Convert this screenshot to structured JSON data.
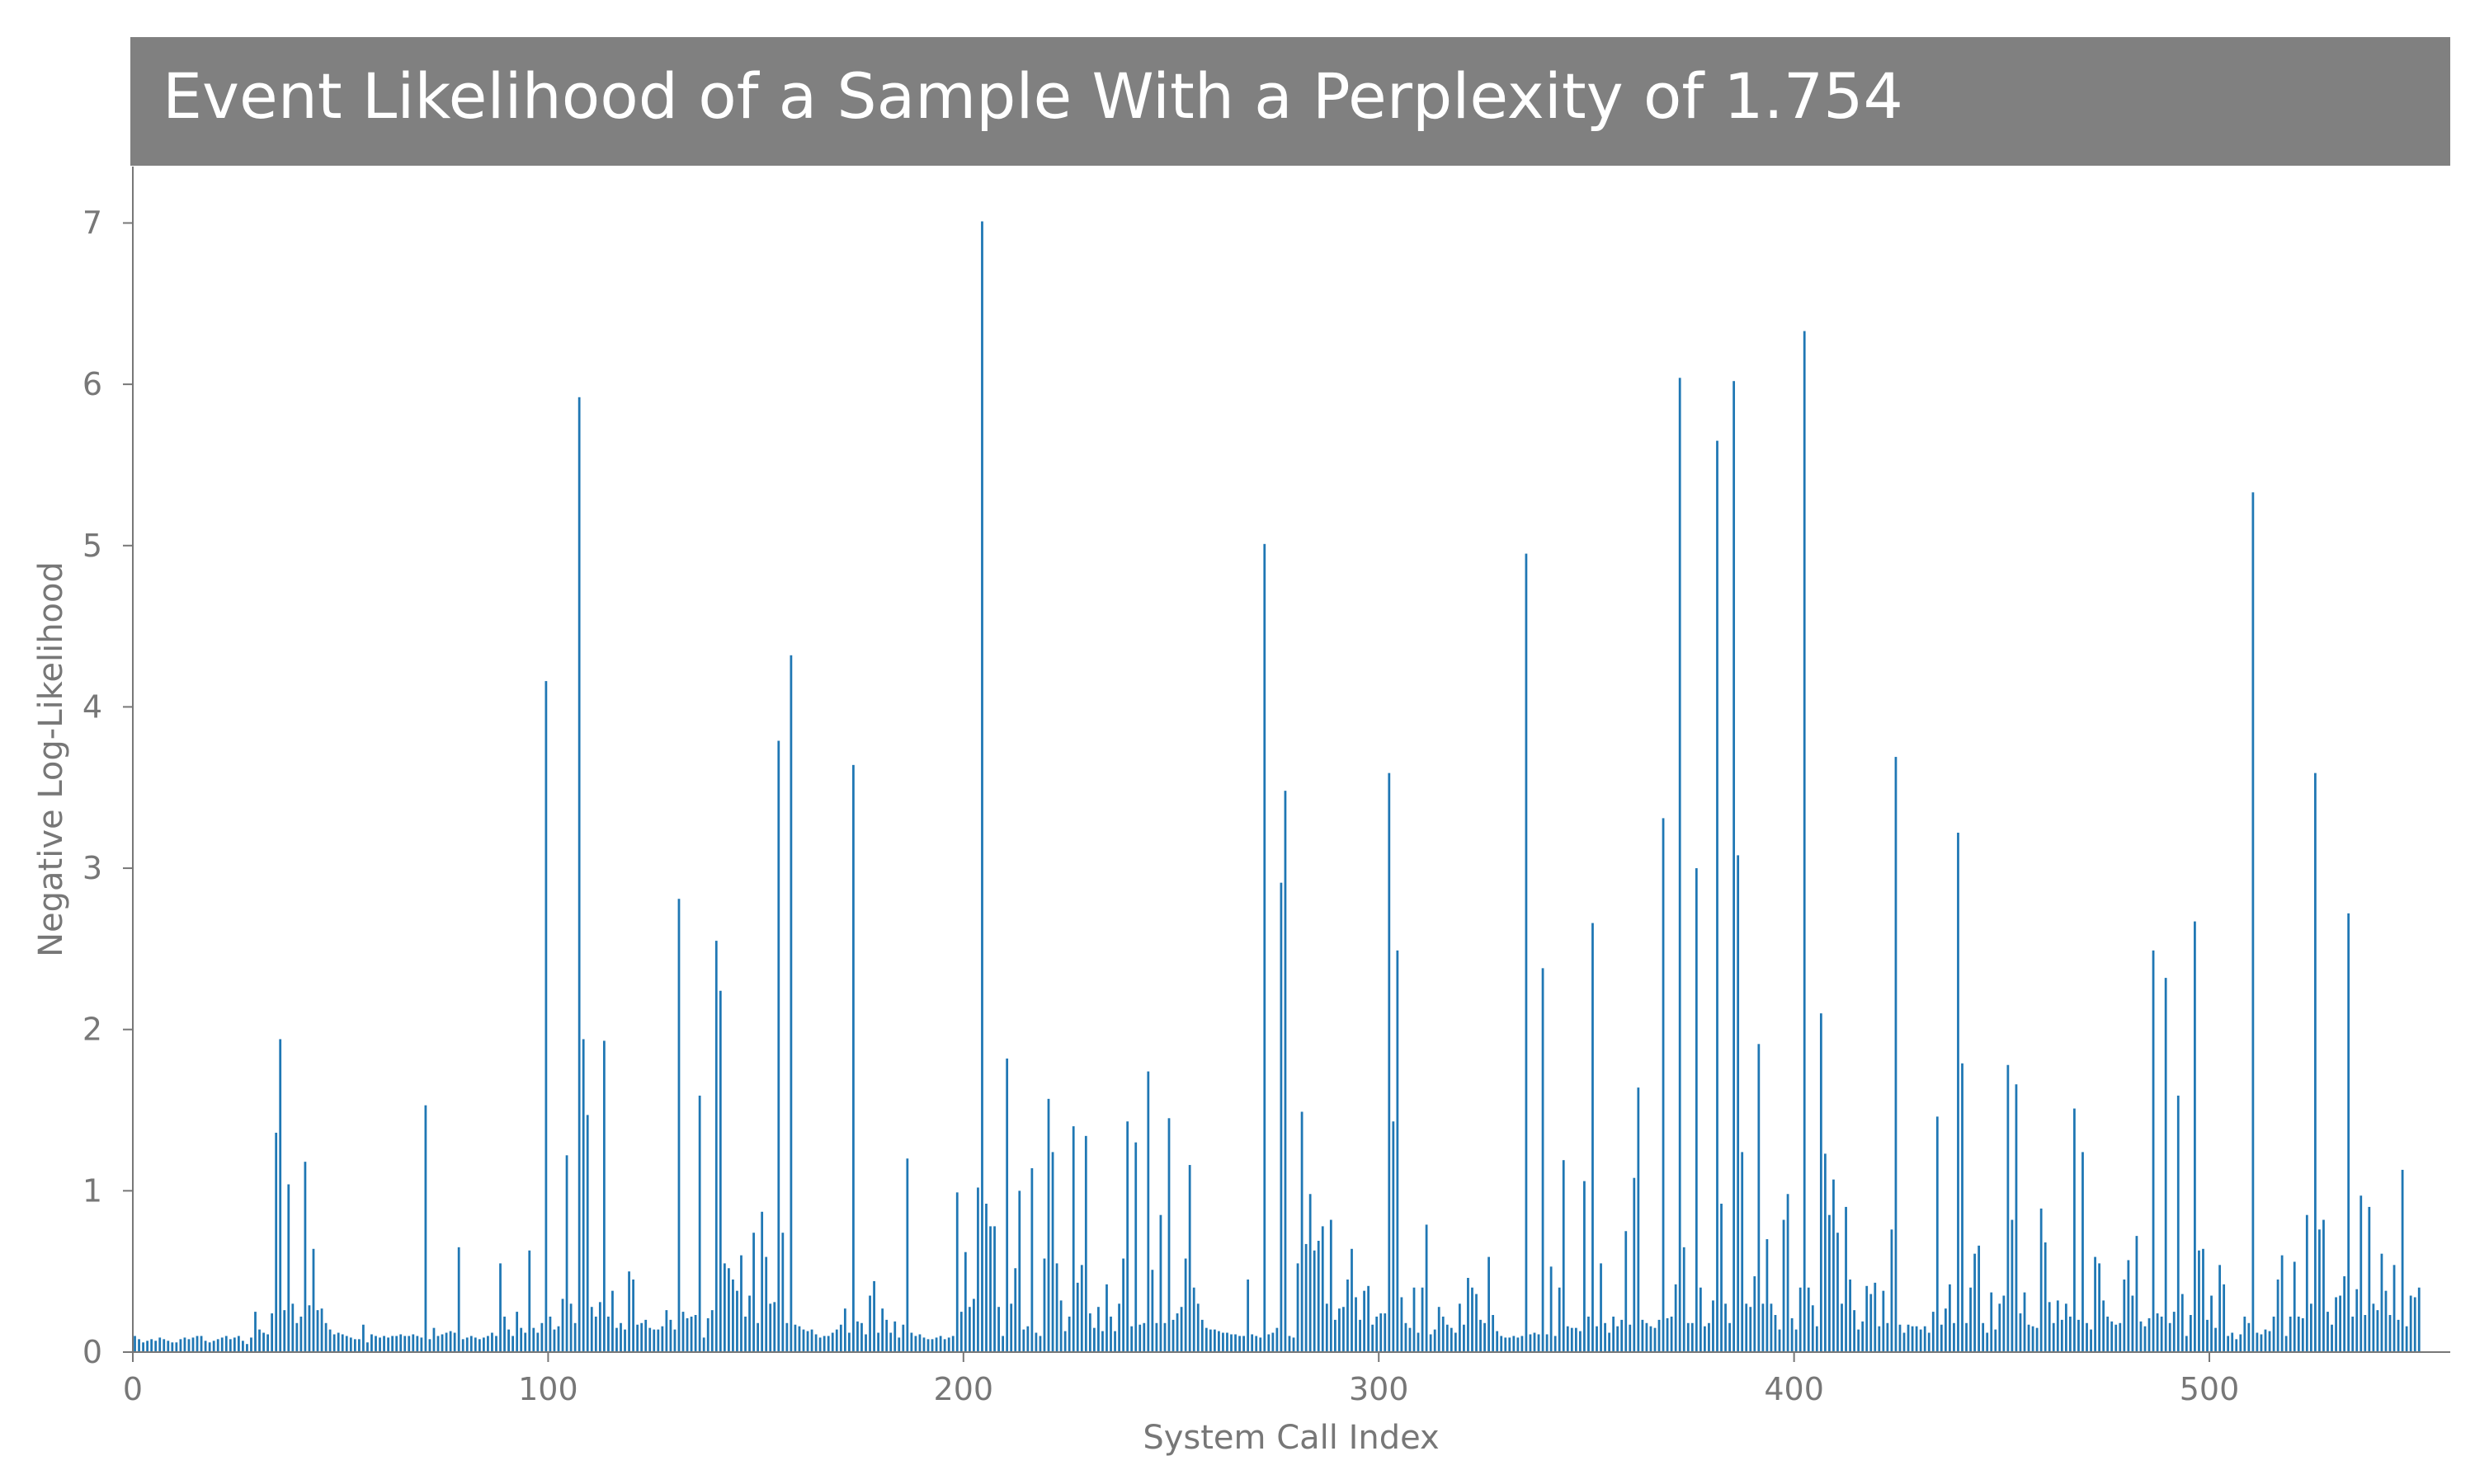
{
  "chart_data": {
    "type": "bar",
    "title": "Event Likelihood of a Sample With a Perplexity of 1.754",
    "xlabel": "System Call Index",
    "ylabel": "Negative Log-Likelihood",
    "xlim": [
      0,
      558
    ],
    "ylim": [
      0,
      7.35
    ],
    "xticks": [
      0,
      100,
      200,
      300,
      400,
      500
    ],
    "yticks": [
      0,
      1,
      2,
      3,
      4,
      5,
      6,
      7
    ],
    "grid": false,
    "legend": "none",
    "colors": {
      "bar": "#1f77b4",
      "title_bg": "#808080",
      "axis": "#777777"
    },
    "values": [
      0.1,
      0.08,
      0.06,
      0.07,
      0.08,
      0.07,
      0.09,
      0.08,
      0.07,
      0.06,
      0.06,
      0.08,
      0.09,
      0.08,
      0.09,
      0.1,
      0.1,
      0.07,
      0.06,
      0.07,
      0.08,
      0.09,
      0.1,
      0.08,
      0.09,
      0.1,
      0.07,
      0.05,
      0.09,
      0.25,
      0.14,
      0.12,
      0.11,
      0.24,
      1.36,
      1.94,
      0.26,
      1.04,
      0.3,
      0.18,
      0.22,
      1.18,
      0.29,
      0.64,
      0.26,
      0.27,
      0.18,
      0.14,
      0.11,
      0.12,
      0.11,
      0.1,
      0.09,
      0.08,
      0.08,
      0.17,
      0.06,
      0.11,
      0.1,
      0.09,
      0.1,
      0.09,
      0.1,
      0.1,
      0.11,
      0.1,
      0.1,
      0.11,
      0.1,
      0.09,
      1.53,
      0.08,
      0.15,
      0.1,
      0.11,
      0.12,
      0.13,
      0.12,
      0.65,
      0.08,
      0.09,
      0.1,
      0.09,
      0.08,
      0.09,
      0.1,
      0.12,
      0.1,
      0.55,
      0.22,
      0.14,
      0.1,
      0.25,
      0.15,
      0.12,
      0.63,
      0.15,
      0.12,
      0.18,
      4.16,
      0.22,
      0.14,
      0.16,
      0.33,
      1.22,
      0.3,
      0.18,
      5.92,
      1.94,
      1.47,
      0.28,
      0.22,
      0.31,
      1.93,
      0.22,
      0.38,
      0.15,
      0.18,
      0.14,
      0.5,
      0.45,
      0.17,
      0.18,
      0.2,
      0.15,
      0.14,
      0.14,
      0.16,
      0.26,
      0.2,
      0.14,
      2.81,
      0.25,
      0.21,
      0.22,
      0.23,
      1.59,
      0.09,
      0.21,
      0.26,
      2.55,
      2.24,
      0.55,
      0.52,
      0.45,
      0.38,
      0.6,
      0.22,
      0.35,
      0.74,
      0.18,
      0.87,
      0.59,
      0.3,
      0.31,
      3.79,
      0.74,
      0.18,
      4.32,
      0.17,
      0.16,
      0.14,
      0.13,
      0.14,
      0.11,
      0.09,
      0.1,
      0.1,
      0.12,
      0.14,
      0.17,
      0.27,
      0.12,
      3.64,
      0.19,
      0.18,
      0.11,
      0.35,
      0.44,
      0.12,
      0.27,
      0.2,
      0.12,
      0.19,
      0.09,
      0.17,
      1.2,
      0.12,
      0.1,
      0.11,
      0.09,
      0.08,
      0.08,
      0.09,
      0.1,
      0.08,
      0.09,
      0.1,
      0.99,
      0.25,
      0.62,
      0.28,
      0.33,
      1.02,
      7.01,
      0.92,
      0.78,
      0.78,
      0.28,
      0.1,
      1.82,
      0.3,
      0.52,
      1.0,
      0.14,
      0.16,
      1.14,
      0.12,
      0.1,
      0.58,
      1.57,
      1.24,
      0.55,
      0.32,
      0.13,
      0.22,
      1.4,
      0.43,
      0.54,
      1.34,
      0.24,
      0.15,
      0.28,
      0.13,
      0.42,
      0.22,
      0.13,
      0.3,
      0.58,
      1.43,
      0.16,
      1.3,
      0.17,
      0.18,
      1.74,
      0.51,
      0.18,
      0.85,
      0.18,
      1.45,
      0.2,
      0.24,
      0.28,
      0.58,
      1.16,
      0.4,
      0.3,
      0.2,
      0.15,
      0.14,
      0.14,
      0.13,
      0.12,
      0.12,
      0.11,
      0.11,
      0.1,
      0.1,
      0.45,
      0.11,
      0.1,
      0.09,
      5.01,
      0.11,
      0.12,
      0.15,
      2.91,
      3.48,
      0.1,
      0.09,
      0.55,
      1.49,
      0.67,
      0.98,
      0.63,
      0.69,
      0.78,
      0.3,
      0.82,
      0.2,
      0.27,
      0.28,
      0.45,
      0.64,
      0.34,
      0.2,
      0.38,
      0.41,
      0.17,
      0.22,
      0.24,
      0.24,
      3.59,
      1.43,
      2.49,
      0.34,
      0.18,
      0.15,
      0.4,
      0.12,
      0.4,
      0.79,
      0.11,
      0.14,
      0.28,
      0.22,
      0.17,
      0.15,
      0.12,
      0.3,
      0.17,
      0.46,
      0.4,
      0.36,
      0.2,
      0.18,
      0.59,
      0.23,
      0.13,
      0.1,
      0.09,
      0.09,
      0.1,
      0.09,
      0.1,
      4.95,
      0.11,
      0.12,
      0.11,
      2.38,
      0.11,
      0.53,
      0.1,
      0.4,
      1.19,
      0.16,
      0.15,
      0.15,
      0.13,
      1.06,
      0.22,
      2.66,
      0.16,
      0.55,
      0.18,
      0.12,
      0.22,
      0.16,
      0.2,
      0.75,
      0.17,
      1.08,
      1.64,
      0.2,
      0.18,
      0.16,
      0.15,
      0.2,
      3.31,
      0.21,
      0.22,
      0.42,
      6.04,
      0.65,
      0.18,
      0.18,
      3.0,
      0.4,
      0.16,
      0.18,
      0.32,
      5.65,
      0.92,
      0.3,
      0.18,
      6.02,
      3.08,
      1.24,
      0.3,
      0.28,
      0.47,
      1.91,
      0.3,
      0.7,
      0.3,
      0.23,
      0.14,
      0.82,
      0.98,
      0.21,
      0.14,
      0.4,
      6.33,
      0.4,
      0.29,
      0.16,
      2.1,
      1.23,
      0.85,
      1.07,
      0.74,
      0.3,
      0.9,
      0.45,
      0.26,
      0.14,
      0.19,
      0.41,
      0.36,
      0.43,
      0.16,
      0.38,
      0.18,
      0.76,
      3.69,
      0.17,
      0.12,
      0.17,
      0.16,
      0.16,
      0.14,
      0.16,
      0.12,
      0.25,
      1.46,
      0.17,
      0.27,
      0.42,
      0.18,
      3.22,
      1.79,
      0.18,
      0.4,
      0.61,
      0.66,
      0.18,
      0.12,
      0.37,
      0.14,
      0.3,
      0.35,
      1.78,
      0.82,
      1.66,
      0.24,
      0.37,
      0.17,
      0.16,
      0.15,
      0.89,
      0.68,
      0.31,
      0.18,
      0.32,
      0.2,
      0.3,
      0.22,
      1.51,
      0.2,
      1.24,
      0.18,
      0.14,
      0.59,
      0.55,
      0.32,
      0.22,
      0.19,
      0.17,
      0.18,
      0.45,
      0.57,
      0.35,
      0.72,
      0.19,
      0.16,
      0.21,
      2.49,
      0.24,
      0.22,
      2.32,
      0.18,
      0.25,
      1.59,
      0.36,
      0.1,
      0.23,
      2.67,
      0.63,
      0.64,
      0.2,
      0.35,
      0.15,
      0.54,
      0.42,
      0.1,
      0.12,
      0.08,
      0.11,
      0.22,
      0.18,
      5.33,
      0.12,
      0.11,
      0.14,
      0.13,
      0.22,
      0.45,
      0.6,
      0.1,
      0.22,
      0.56,
      0.22,
      0.21,
      0.85,
      0.3,
      3.59,
      0.76,
      0.82,
      0.25,
      0.17,
      0.34,
      0.35,
      0.47,
      2.72,
      0.22,
      0.39,
      0.97,
      0.23,
      0.9,
      0.3,
      0.26,
      0.61,
      0.38,
      0.23,
      0.54,
      0.2,
      1.13,
      0.16,
      0.35,
      0.34,
      0.4
    ]
  }
}
